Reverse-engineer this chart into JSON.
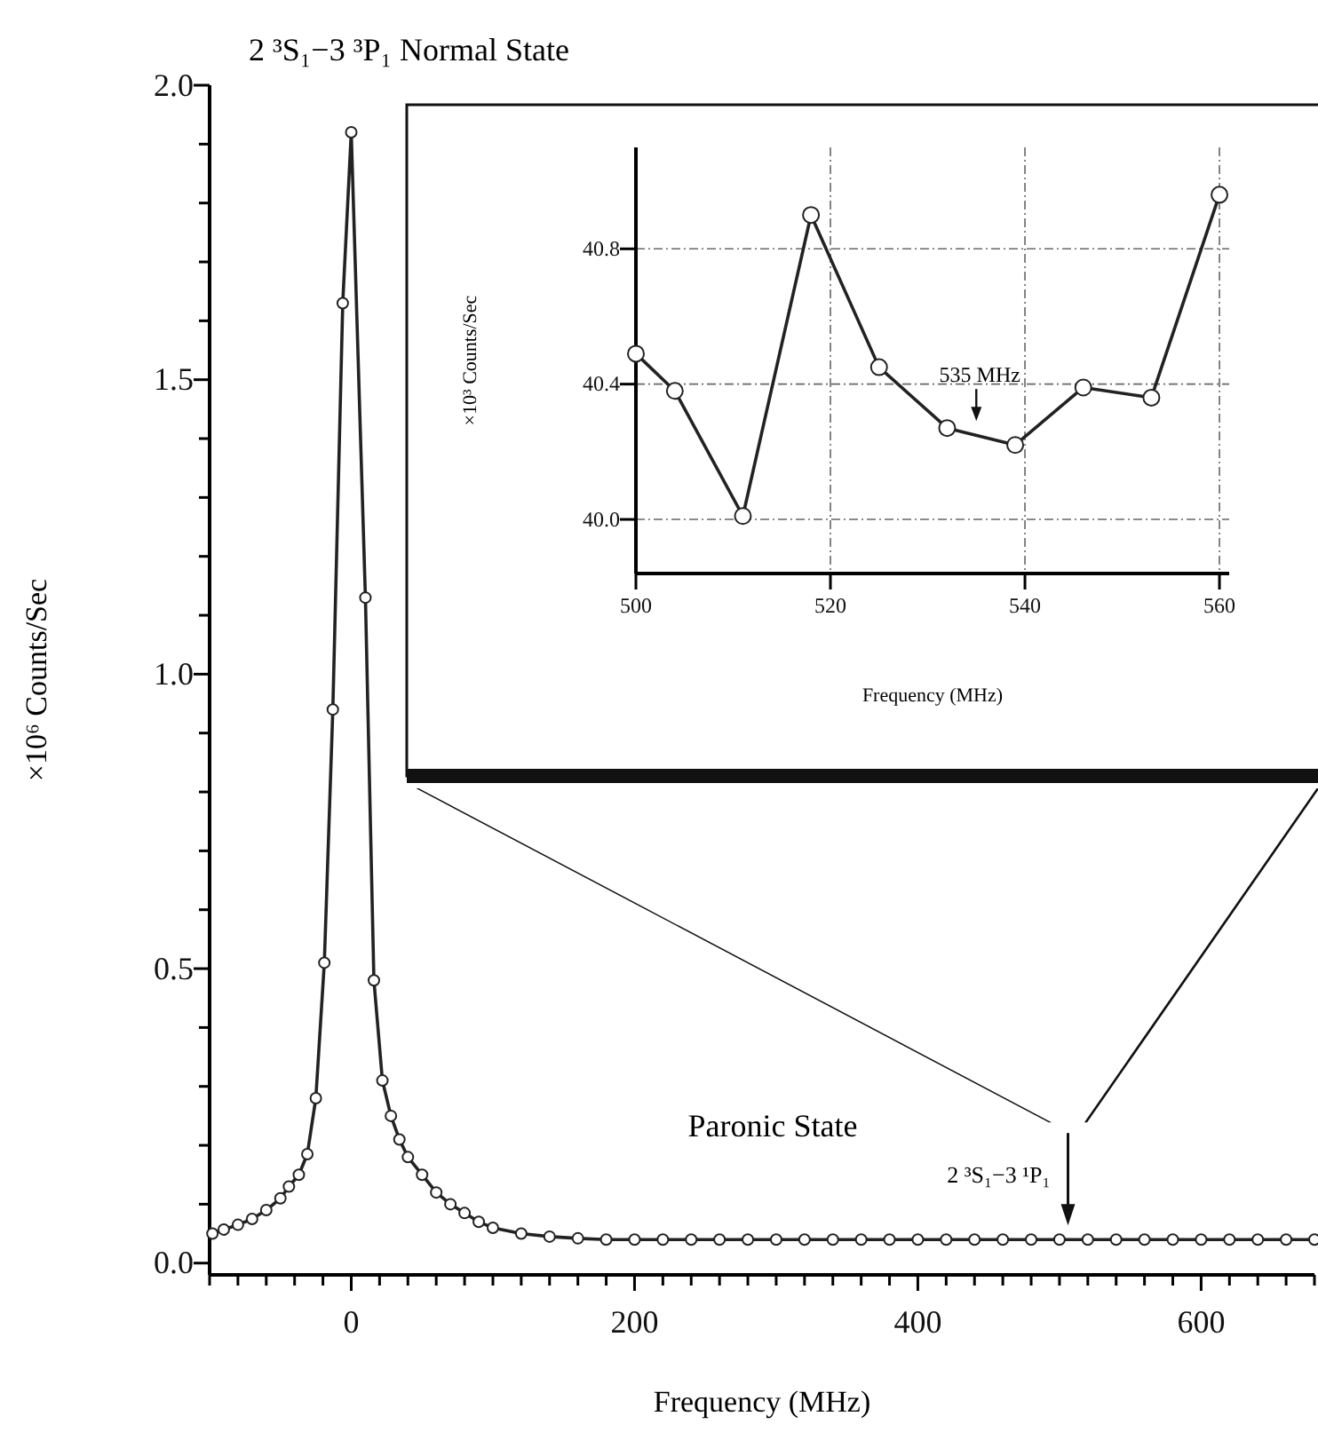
{
  "chart_data": [
    {
      "type": "line",
      "title": "2 ³S₁−3 ³P₁ Normal State",
      "xlabel": "Frequency (MHz)",
      "ylabel": "×10⁶ Counts/Sec",
      "marker": "circle",
      "x": [
        -98,
        -90,
        -80,
        -70,
        -60,
        -50,
        -44,
        -37,
        -31,
        -25,
        -19,
        -13,
        -6,
        0,
        10,
        16,
        22,
        28,
        34,
        40,
        50,
        60,
        70,
        80,
        90,
        100,
        120,
        140,
        160,
        180,
        200,
        220,
        240,
        260,
        280,
        300,
        320,
        340,
        360,
        380,
        400,
        420,
        440,
        460,
        480,
        500,
        520,
        540,
        560,
        580,
        600,
        620,
        640,
        660,
        680
      ],
      "series": [
        {
          "color": "#222222",
          "values": [
            0.05,
            0.057,
            0.065,
            0.075,
            0.09,
            0.11,
            0.13,
            0.15,
            0.185,
            0.28,
            0.51,
            0.94,
            1.63,
            1.92,
            1.13,
            0.48,
            0.31,
            0.25,
            0.21,
            0.18,
            0.15,
            0.12,
            0.1,
            0.085,
            0.07,
            0.06,
            0.05,
            0.045,
            0.042,
            0.04,
            0.04,
            0.04,
            0.04,
            0.04,
            0.04,
            0.04,
            0.04,
            0.04,
            0.04,
            0.04,
            0.04,
            0.04,
            0.04,
            0.04,
            0.04,
            0.04,
            0.04,
            0.04,
            0.04,
            0.04,
            0.04,
            0.04,
            0.04,
            0.04,
            0.04
          ]
        }
      ],
      "xlim": [
        -100,
        680
      ],
      "ylim": [
        -0.02,
        2.0
      ],
      "xticks": [
        {
          "value": -100,
          "label": null
        },
        {
          "value": -80,
          "label": null
        },
        {
          "value": -60,
          "label": null
        },
        {
          "value": -40,
          "label": null
        },
        {
          "value": -20,
          "label": null
        },
        0,
        {
          "value": 20,
          "label": null
        },
        {
          "value": 40,
          "label": null
        },
        {
          "value": 60,
          "label": null
        },
        {
          "value": 80,
          "label": null
        },
        {
          "value": 100,
          "label": null
        },
        {
          "value": 120,
          "label": null
        },
        {
          "value": 140,
          "label": null
        },
        {
          "value": 160,
          "label": null
        },
        {
          "value": 180,
          "label": null
        },
        200,
        {
          "value": 220,
          "label": null
        },
        {
          "value": 240,
          "label": null
        },
        {
          "value": 260,
          "label": null
        },
        {
          "value": 280,
          "label": null
        },
        {
          "value": 300,
          "label": null
        },
        {
          "value": 320,
          "label": null
        },
        {
          "value": 340,
          "label": null
        },
        {
          "value": 360,
          "label": null
        },
        {
          "value": 380,
          "label": null
        },
        400,
        {
          "value": 420,
          "label": null
        },
        {
          "value": 440,
          "label": null
        },
        {
          "value": 460,
          "label": null
        },
        {
          "value": 480,
          "label": null
        },
        {
          "value": 500,
          "label": null
        },
        {
          "value": 520,
          "label": null
        },
        {
          "value": 540,
          "label": null
        },
        {
          "value": 560,
          "label": null
        },
        {
          "value": 580,
          "label": null
        },
        600,
        {
          "value": 620,
          "label": null
        },
        {
          "value": 640,
          "label": null
        },
        {
          "value": 660,
          "label": null
        },
        {
          "value": 680,
          "label": null
        }
      ],
      "yticks": [
        {
          "value": 0,
          "label": "0.0"
        },
        {
          "value": 0.1,
          "label": null
        },
        {
          "value": 0.2,
          "label": null
        },
        {
          "value": 0.3,
          "label": null
        },
        {
          "value": 0.4,
          "label": null
        },
        {
          "value": 0.5,
          "label": "0.5"
        },
        {
          "value": 0.6,
          "label": null
        },
        {
          "value": 0.7,
          "label": null
        },
        {
          "value": 0.8,
          "label": null
        },
        {
          "value": 0.9,
          "label": null
        },
        {
          "value": 1.0,
          "label": "1.0"
        },
        {
          "value": 1.1,
          "label": null
        },
        {
          "value": 1.2,
          "label": null
        },
        {
          "value": 1.3,
          "label": null
        },
        {
          "value": 1.4,
          "label": null
        },
        {
          "value": 1.5,
          "label": "1.5"
        },
        {
          "value": 1.6,
          "label": null
        },
        {
          "value": 1.7,
          "label": null
        },
        {
          "value": 1.8,
          "label": null
        },
        {
          "value": 1.9,
          "label": null
        },
        {
          "value": 2.0,
          "label": "2.0"
        }
      ],
      "annotations": [
        "Paronic State",
        {
          "text": "2 ³S₁−3 ¹P₁",
          "x": 506,
          "y": 0.04
        }
      ]
    },
    {
      "type": "line",
      "xlabel": "Frequency (MHz)",
      "ylabel": "×10³ Counts/Sec",
      "marker": "circle",
      "grid": true,
      "x": [
        500,
        504,
        511,
        518,
        525,
        532,
        539,
        546,
        553,
        560
      ],
      "series": [
        {
          "color": "#222222",
          "values": [
            40.49,
            40.38,
            40.01,
            40.9,
            40.45,
            40.27,
            40.22,
            40.39,
            40.36,
            40.96
          ]
        }
      ],
      "xlim": [
        500,
        561
      ],
      "ylim": [
        39.84,
        41.1
      ],
      "xticks": [
        500,
        520,
        540,
        560
      ],
      "yticks": [
        {
          "value": 40.0,
          "label": "40.0"
        },
        40.4,
        40.8
      ],
      "annotations": [
        {
          "text": "535 MHz",
          "x": 535,
          "y": 40.27
        }
      ]
    }
  ]
}
